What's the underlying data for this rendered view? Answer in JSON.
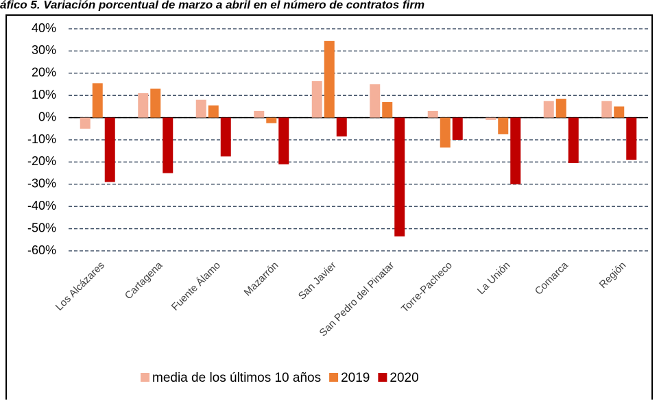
{
  "chart_data": {
    "type": "bar",
    "title": "áfico 5. Variación porcentual de marzo a abril en el número de contratos firm",
    "categories": [
      "Los Alcázares",
      "Cartagena",
      "Fuente Álamo",
      "Mazarrón",
      "San Javier",
      "San Pedro del Pinatar",
      "Torre-Pacheco",
      "La Unión",
      "Comarca",
      "Región"
    ],
    "series": [
      {
        "name": "media de los últimos 10 años",
        "color": "#f4b09a",
        "values": [
          -5,
          11,
          8,
          3,
          16.5,
          15,
          3,
          -1,
          7.5,
          7.5
        ]
      },
      {
        "name": "2019",
        "color": "#ed7d31",
        "values": [
          15.5,
          13,
          5.5,
          -2.5,
          34.5,
          7,
          -13.5,
          -7.5,
          8.5,
          5
        ]
      },
      {
        "name": "2020",
        "color": "#c00000",
        "values": [
          -29,
          -25,
          -17.5,
          -21,
          -8.5,
          -53.5,
          -10,
          -30,
          -20.5,
          -19
        ]
      }
    ],
    "ylim": [
      -60,
      40
    ],
    "yticks": [
      {
        "value": -60,
        "label": "-60%"
      },
      {
        "value": -50,
        "label": "-50%"
      },
      {
        "value": -40,
        "label": "-40%"
      },
      {
        "value": -30,
        "label": "-30%"
      },
      {
        "value": -20,
        "label": "-20%"
      },
      {
        "value": -10,
        "label": "-10%"
      },
      {
        "value": 0,
        "label": "0%"
      },
      {
        "value": 10,
        "label": "10%"
      },
      {
        "value": 20,
        "label": "20%"
      },
      {
        "value": 30,
        "label": "30%"
      },
      {
        "value": 40,
        "label": "40%"
      }
    ],
    "grid": true,
    "legend": "bottom"
  }
}
